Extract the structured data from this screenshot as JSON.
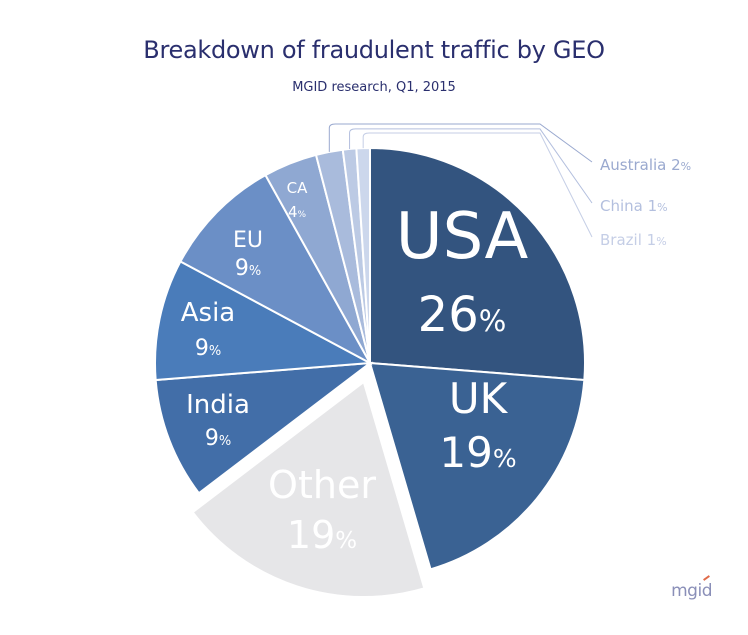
{
  "chart_data": {
    "type": "pie",
    "title": "Breakdown of fraudulent traffic by GEO",
    "subtitle": "MGID research, Q1, 2015",
    "slices": [
      {
        "name": "USA",
        "value": 26,
        "label": "26",
        "unit": "%",
        "color": "#33547f",
        "text_color": "#ffffff"
      },
      {
        "name": "UK",
        "value": 19,
        "label": "19",
        "unit": "%",
        "color": "#3a6293",
        "text_color": "#ffffff"
      },
      {
        "name": "Other",
        "value": 19,
        "label": "19",
        "unit": "%",
        "color": "#e6e6e8",
        "text_color": "#ffffff",
        "exploded": true
      },
      {
        "name": "India",
        "value": 9,
        "label": "9",
        "unit": "%",
        "color": "#426ea8",
        "text_color": "#ffffff"
      },
      {
        "name": "Asia",
        "value": 9,
        "label": "9",
        "unit": "%",
        "color": "#4a7cba",
        "text_color": "#ffffff"
      },
      {
        "name": "EU",
        "value": 9,
        "label": "9",
        "unit": "%",
        "color": "#6b8fc6",
        "text_color": "#ffffff"
      },
      {
        "name": "CA",
        "value": 4,
        "label": "4",
        "unit": "%",
        "color": "#8fa8d2",
        "text_color": "#ffffff"
      },
      {
        "name": "Australia",
        "value": 2,
        "label": "2",
        "unit": "%",
        "color": "#a9bbdc",
        "text_color": "#9aa9cf",
        "outside": true
      },
      {
        "name": "China",
        "value": 1,
        "label": "1",
        "unit": "%",
        "color": "#bccae4",
        "text_color": "#b3bfde",
        "outside": true
      },
      {
        "name": "Brazil",
        "value": 1,
        "label": "1",
        "unit": "%",
        "color": "#ccd7ec",
        "text_color": "#c5cee6",
        "outside": true
      }
    ]
  },
  "brand": "mgid"
}
